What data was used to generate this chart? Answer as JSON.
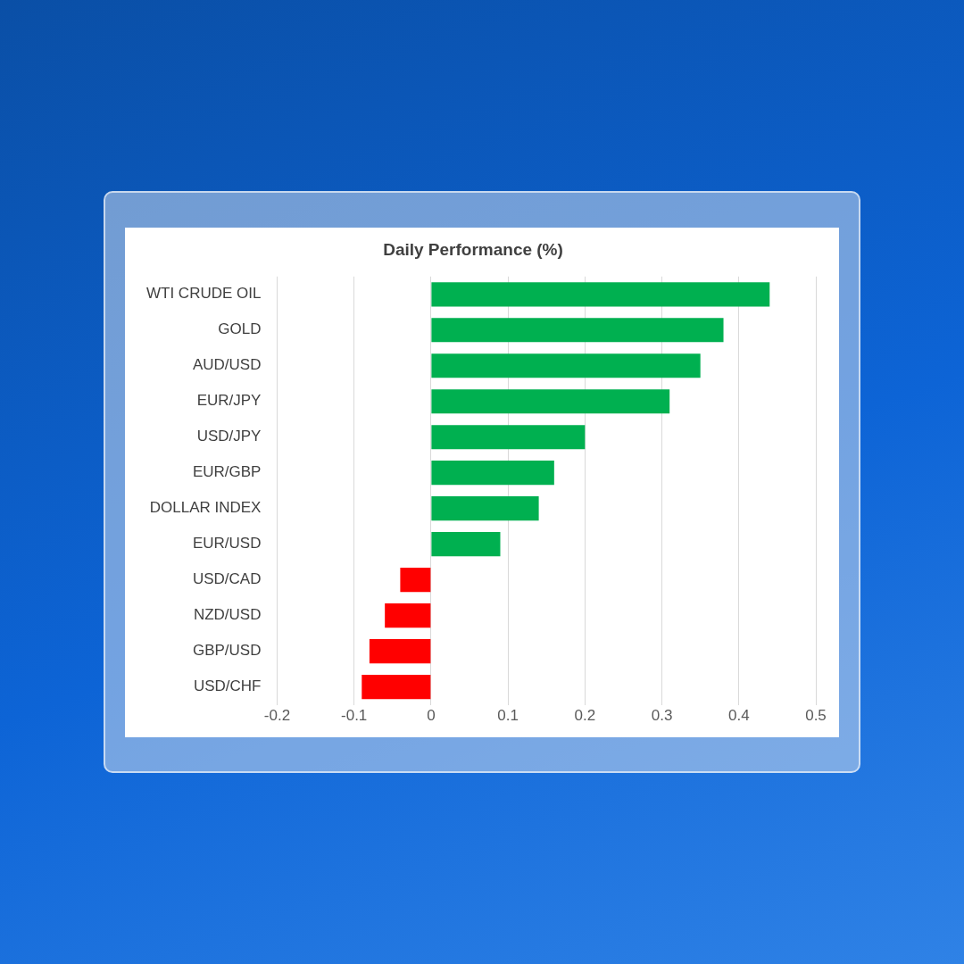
{
  "chart_data": {
    "type": "bar",
    "orientation": "horizontal",
    "title": "Daily Performance (%)",
    "categories": [
      "WTI CRUDE OIL",
      "GOLD",
      "AUD/USD",
      "EUR/JPY",
      "USD/JPY",
      "EUR/GBP",
      "DOLLAR INDEX",
      "EUR/USD",
      "USD/CAD",
      "NZD/USD",
      "GBP/USD",
      "USD/CHF"
    ],
    "values": [
      0.44,
      0.38,
      0.35,
      0.31,
      0.2,
      0.16,
      0.14,
      0.09,
      -0.04,
      -0.06,
      -0.08,
      -0.09
    ],
    "colors": [
      "#00b050",
      "#00b050",
      "#00b050",
      "#00b050",
      "#00b050",
      "#00b050",
      "#00b050",
      "#00b050",
      "#ff0000",
      "#ff0000",
      "#ff0000",
      "#ff0000"
    ],
    "xlim": [
      -0.2,
      0.5
    ],
    "xticks": [
      -0.2,
      -0.1,
      0,
      0.1,
      0.2,
      0.3,
      0.4,
      0.5
    ],
    "grid": "x",
    "legend": false
  }
}
